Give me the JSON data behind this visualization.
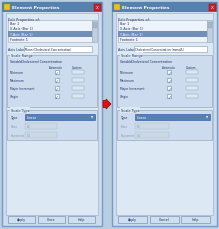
{
  "overall_bg": "#b8cfe0",
  "dialog_border": "#7799cc",
  "dialog_bg": "#ccdcee",
  "inner_bg": "#dce8f4",
  "title_bar_color": "#5580b0",
  "title_text": "Element Properties",
  "title_text_color": "#ffffff",
  "title_icon_color": "#f0c020",
  "close_btn_color": "#cc2222",
  "listbox_bg": "#eef2fa",
  "listbox_border": "#9aaabb",
  "scrollbar_bg": "#c0d0e0",
  "highlight_row_bg": "#7090b8",
  "highlight_text_color": "#ffffff",
  "normal_text_color": "#223366",
  "list_items": [
    "Bar 1",
    "X-Axis (Bar 1)",
    "Y-Axis (Bar 1)",
    "Footnote 1"
  ],
  "highlight_index": 2,
  "axis_label_prefix": "Axis Label",
  "left_axis_label": "Mean (Cholesterol Concentration)",
  "right_axis_label": "Cholesterol Concentration (mmol/L)",
  "axis_label_bg": "#ffffff",
  "axis_label_border": "#9aaabb",
  "section_bg": "#ccdcee",
  "group_border": "#9aaabb",
  "scale_range_label": "Scale Range",
  "variable_label": "Variable",
  "variable_value": "Cholesterol Concentration",
  "auto_label": "Automatic",
  "custom_label": "Custom",
  "scale_rows": [
    "Minimum",
    "Maximum",
    "Major Increment",
    "Origin"
  ],
  "checkbox_fill": "#ffffff",
  "checkbox_check": "#4466aa",
  "custom_field_bg": "#dce8f4",
  "scale_type_label": "Scale Type",
  "type_label": "Type",
  "type_dropdown_bg": "#5580b0",
  "type_dropdown_text": "Linear",
  "type_dropdown_color": "#ffffff",
  "grayed_label_color": "#8899aa",
  "grayed_field_bg": "#ccd8e4",
  "base_label": "Base",
  "base_value": "10",
  "exp_label": "Exponent",
  "exp_value": "0.0",
  "button_bg": "#d0dff0",
  "button_border": "#7799bb",
  "button_text_color": "#223366",
  "left_buttons": [
    "Apply",
    "Close",
    "Help"
  ],
  "right_buttons": [
    "Apply",
    "Cancel",
    "Help"
  ],
  "arrow_color": "#dd1111",
  "arrow_border": "#990000",
  "edit_props_label": "Edit Properties of:"
}
